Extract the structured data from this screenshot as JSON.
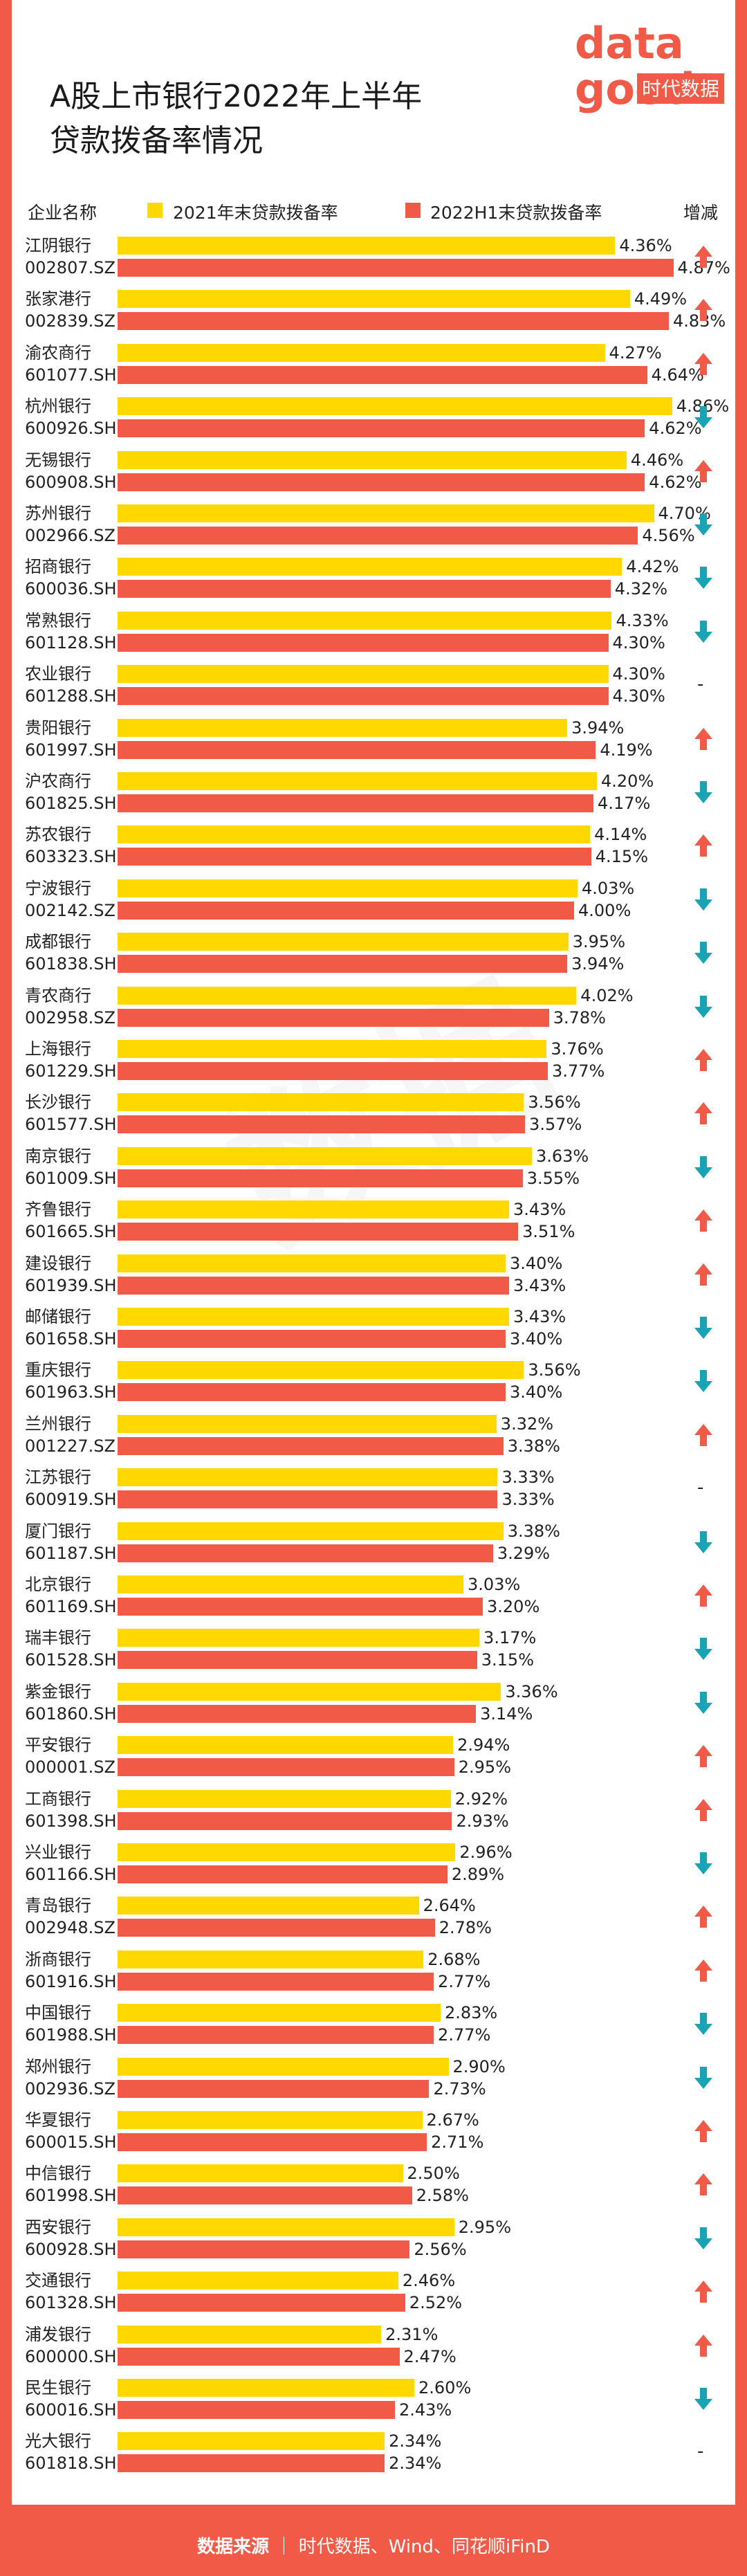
{
  "title": {
    "line1": "A股上市银行2022年上半年",
    "line2": "贷款拨备率情况"
  },
  "logo": {
    "top": "data",
    "bottom": "good",
    "badge": "时代数据"
  },
  "header": {
    "company": "企业名称",
    "change": "增减"
  },
  "footer": {
    "source_label": "数据来源",
    "source_text": "时代数据、Wind、同花顺iFinD"
  },
  "watermark": "数据",
  "colors": {
    "series2021": "#ffd800",
    "series2022": "#f05a47",
    "up": "#f05a47",
    "down": "#1aa3b5"
  },
  "chart_data": {
    "type": "bar",
    "series": [
      {
        "name": "2021年末贷款拨备率",
        "color": "#ffd800"
      },
      {
        "name": "2022H1末贷款拨备率",
        "color": "#f05a47"
      }
    ],
    "unit": "%",
    "rows": [
      {
        "bank": "江阴银行",
        "code": "002807.SZ",
        "v2021": 4.36,
        "v2022": 4.87,
        "change": "up"
      },
      {
        "bank": "张家港行",
        "code": "002839.SZ",
        "v2021": 4.49,
        "v2022": 4.83,
        "change": "up"
      },
      {
        "bank": "渝农商行",
        "code": "601077.SH",
        "v2021": 4.27,
        "v2022": 4.64,
        "change": "up"
      },
      {
        "bank": "杭州银行",
        "code": "600926.SH",
        "v2021": 4.86,
        "v2022": 4.62,
        "change": "down"
      },
      {
        "bank": "无锡银行",
        "code": "600908.SH",
        "v2021": 4.46,
        "v2022": 4.62,
        "change": "up"
      },
      {
        "bank": "苏州银行",
        "code": "002966.SZ",
        "v2021": 4.7,
        "v2022": 4.56,
        "change": "down"
      },
      {
        "bank": "招商银行",
        "code": "600036.SH",
        "v2021": 4.42,
        "v2022": 4.32,
        "change": "down"
      },
      {
        "bank": "常熟银行",
        "code": "601128.SH",
        "v2021": 4.33,
        "v2022": 4.3,
        "change": "down"
      },
      {
        "bank": "农业银行",
        "code": "601288.SH",
        "v2021": 4.3,
        "v2022": 4.3,
        "change": "flat"
      },
      {
        "bank": "贵阳银行",
        "code": "601997.SH",
        "v2021": 3.94,
        "v2022": 4.19,
        "change": "up"
      },
      {
        "bank": "沪农商行",
        "code": "601825.SH",
        "v2021": 4.2,
        "v2022": 4.17,
        "change": "down"
      },
      {
        "bank": "苏农银行",
        "code": "603323.SH",
        "v2021": 4.14,
        "v2022": 4.15,
        "change": "up"
      },
      {
        "bank": "宁波银行",
        "code": "002142.SZ",
        "v2021": 4.03,
        "v2022": 4.0,
        "change": "down"
      },
      {
        "bank": "成都银行",
        "code": "601838.SH",
        "v2021": 3.95,
        "v2022": 3.94,
        "change": "down"
      },
      {
        "bank": "青农商行",
        "code": "002958.SZ",
        "v2021": 4.02,
        "v2022": 3.78,
        "change": "down"
      },
      {
        "bank": "上海银行",
        "code": "601229.SH",
        "v2021": 3.76,
        "v2022": 3.77,
        "change": "up"
      },
      {
        "bank": "长沙银行",
        "code": "601577.SH",
        "v2021": 3.56,
        "v2022": 3.57,
        "change": "up"
      },
      {
        "bank": "南京银行",
        "code": "601009.SH",
        "v2021": 3.63,
        "v2022": 3.55,
        "change": "down"
      },
      {
        "bank": "齐鲁银行",
        "code": "601665.SH",
        "v2021": 3.43,
        "v2022": 3.51,
        "change": "up"
      },
      {
        "bank": "建设银行",
        "code": "601939.SH",
        "v2021": 3.4,
        "v2022": 3.43,
        "change": "up"
      },
      {
        "bank": "邮储银行",
        "code": "601658.SH",
        "v2021": 3.43,
        "v2022": 3.4,
        "change": "down"
      },
      {
        "bank": "重庆银行",
        "code": "601963.SH",
        "v2021": 3.56,
        "v2022": 3.4,
        "change": "down"
      },
      {
        "bank": "兰州银行",
        "code": "001227.SZ",
        "v2021": 3.32,
        "v2022": 3.38,
        "change": "up"
      },
      {
        "bank": "江苏银行",
        "code": "600919.SH",
        "v2021": 3.33,
        "v2022": 3.33,
        "change": "flat"
      },
      {
        "bank": "厦门银行",
        "code": "601187.SH",
        "v2021": 3.38,
        "v2022": 3.29,
        "change": "down"
      },
      {
        "bank": "北京银行",
        "code": "601169.SH",
        "v2021": 3.03,
        "v2022": 3.2,
        "change": "up"
      },
      {
        "bank": "瑞丰银行",
        "code": "601528.SH",
        "v2021": 3.17,
        "v2022": 3.15,
        "change": "down"
      },
      {
        "bank": "紫金银行",
        "code": "601860.SH",
        "v2021": 3.36,
        "v2022": 3.14,
        "change": "down"
      },
      {
        "bank": "平安银行",
        "code": "000001.SZ",
        "v2021": 2.94,
        "v2022": 2.95,
        "change": "up"
      },
      {
        "bank": "工商银行",
        "code": "601398.SH",
        "v2021": 2.92,
        "v2022": 2.93,
        "change": "up"
      },
      {
        "bank": "兴业银行",
        "code": "601166.SH",
        "v2021": 2.96,
        "v2022": 2.89,
        "change": "down"
      },
      {
        "bank": "青岛银行",
        "code": "002948.SZ",
        "v2021": 2.64,
        "v2022": 2.78,
        "change": "up"
      },
      {
        "bank": "浙商银行",
        "code": "601916.SH",
        "v2021": 2.68,
        "v2022": 2.77,
        "change": "up"
      },
      {
        "bank": "中国银行",
        "code": "601988.SH",
        "v2021": 2.83,
        "v2022": 2.77,
        "change": "down"
      },
      {
        "bank": "郑州银行",
        "code": "002936.SZ",
        "v2021": 2.9,
        "v2022": 2.73,
        "change": "down"
      },
      {
        "bank": "华夏银行",
        "code": "600015.SH",
        "v2021": 2.67,
        "v2022": 2.71,
        "change": "up"
      },
      {
        "bank": "中信银行",
        "code": "601998.SH",
        "v2021": 2.5,
        "v2022": 2.58,
        "change": "up"
      },
      {
        "bank": "西安银行",
        "code": "600928.SH",
        "v2021": 2.95,
        "v2022": 2.56,
        "change": "down"
      },
      {
        "bank": "交通银行",
        "code": "601328.SH",
        "v2021": 2.46,
        "v2022": 2.52,
        "change": "up"
      },
      {
        "bank": "浦发银行",
        "code": "600000.SH",
        "v2021": 2.31,
        "v2022": 2.47,
        "change": "up"
      },
      {
        "bank": "民生银行",
        "code": "600016.SH",
        "v2021": 2.6,
        "v2022": 2.43,
        "change": "down"
      },
      {
        "bank": "光大银行",
        "code": "601818.SH",
        "v2021": 2.34,
        "v2022": 2.34,
        "change": "flat"
      }
    ]
  }
}
